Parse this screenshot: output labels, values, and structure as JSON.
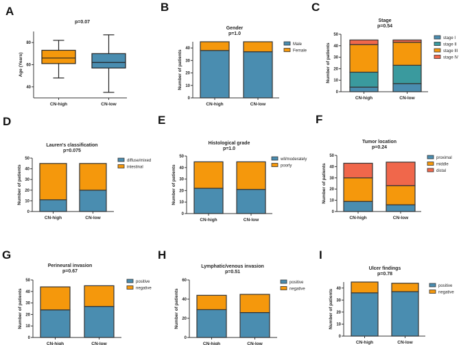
{
  "colors": {
    "blue": "#4a8db0",
    "teal": "#3a9a9e",
    "orange": "#f5980c",
    "red": "#f0674b",
    "outline": "#333333"
  },
  "chart_data": [
    {
      "id": "A",
      "label": "A",
      "type": "box",
      "title": "",
      "ptext": "p=0.07",
      "ylabel": "Age (Years)",
      "yticks": [
        40,
        60,
        80
      ],
      "ylim": [
        30,
        90
      ],
      "categories": [
        "CN-high",
        "CN-low"
      ],
      "boxes": [
        {
          "name": "CN-high",
          "color": "#f5980c",
          "min": 48,
          "q1": 61,
          "median": 66,
          "q3": 73,
          "max": 82
        },
        {
          "name": "CN-low",
          "color": "#4a8db0",
          "min": 35,
          "q1": 57,
          "median": 62,
          "q3": 70,
          "max": 87
        }
      ]
    },
    {
      "id": "B",
      "label": "B",
      "type": "bar",
      "title": "Gender",
      "ptext": "p=1.0",
      "ylabel": "Number of patients",
      "yticks": [
        0,
        10,
        20,
        30,
        40
      ],
      "ylim": [
        0,
        45
      ],
      "categories": [
        "CN-high",
        "CN-low"
      ],
      "series": [
        {
          "name": "Male",
          "color": "#4a8db0",
          "values": [
            38,
            37
          ]
        },
        {
          "name": "Female",
          "color": "#f5980c",
          "values": [
            7,
            8
          ]
        }
      ]
    },
    {
      "id": "C",
      "label": "C",
      "type": "bar",
      "title": "Stage",
      "ptext": "p=0.54",
      "ylabel": "Number of patients",
      "yticks": [
        0,
        10,
        20,
        30,
        40,
        50
      ],
      "ylim": [
        0,
        50
      ],
      "categories": [
        "CN-high",
        "CN-low"
      ],
      "series": [
        {
          "name": "stage I",
          "color": "#4a8db0",
          "values": [
            4,
            7
          ]
        },
        {
          "name": "stage II",
          "color": "#3a9a9e",
          "values": [
            13,
            16
          ]
        },
        {
          "name": "stage III",
          "color": "#f5980c",
          "values": [
            24,
            20
          ]
        },
        {
          "name": "stage IV",
          "color": "#f0674b",
          "values": [
            4,
            2
          ]
        }
      ]
    },
    {
      "id": "D",
      "label": "D",
      "type": "bar",
      "title": "Lauren's classification",
      "ptext": "p=0.075",
      "ylabel": "Number of patients",
      "yticks": [
        0,
        10,
        20,
        30,
        40,
        50
      ],
      "ylim": [
        0,
        50
      ],
      "categories": [
        "CN-high",
        "CN-low"
      ],
      "series": [
        {
          "name": "diffuse/mixed",
          "color": "#4a8db0",
          "values": [
            11,
            20
          ]
        },
        {
          "name": "intestinal",
          "color": "#f5980c",
          "values": [
            34,
            25
          ]
        }
      ]
    },
    {
      "id": "E",
      "label": "E",
      "type": "bar",
      "title": "Histological grade",
      "ptext": "p=1.0",
      "ylabel": "Number of patients",
      "yticks": [
        0,
        10,
        20,
        30,
        40,
        50
      ],
      "ylim": [
        0,
        50
      ],
      "categories": [
        "CN-high",
        "CN-low"
      ],
      "series": [
        {
          "name": "wll/moderately",
          "color": "#4a8db0",
          "values": [
            22,
            21
          ]
        },
        {
          "name": "poorly",
          "color": "#f5980c",
          "values": [
            23,
            24
          ]
        }
      ]
    },
    {
      "id": "F",
      "label": "F",
      "type": "bar",
      "title": "Tumor location",
      "ptext": "p=0.24",
      "ylabel": "Number of patients",
      "yticks": [
        0,
        10,
        20,
        30,
        40,
        50
      ],
      "ylim": [
        0,
        50
      ],
      "categories": [
        "CN-high",
        "CN-low"
      ],
      "series": [
        {
          "name": "proximal",
          "color": "#4a8db0",
          "values": [
            9,
            6
          ]
        },
        {
          "name": "middle",
          "color": "#f5980c",
          "values": [
            21,
            17
          ]
        },
        {
          "name": "distal",
          "color": "#f0674b",
          "values": [
            13,
            21
          ]
        }
      ]
    },
    {
      "id": "G",
      "label": "G",
      "type": "bar",
      "title": "Perineural invasion",
      "ptext": "p=0.67",
      "ylabel": "Number of patients",
      "yticks": [
        0,
        10,
        20,
        30,
        40,
        50
      ],
      "ylim": [
        0,
        50
      ],
      "categories": [
        "CN-high",
        "CN-low"
      ],
      "series": [
        {
          "name": "positive",
          "color": "#4a8db0",
          "values": [
            24,
            27
          ]
        },
        {
          "name": "negative",
          "color": "#f5980c",
          "values": [
            20,
            18
          ]
        }
      ]
    },
    {
      "id": "H",
      "label": "H",
      "type": "bar",
      "title": "Lymphatic/venous invasion",
      "ptext": "p=0.51",
      "ylabel": "Number of patients",
      "yticks": [
        0,
        20,
        40,
        60
      ],
      "ylim": [
        0,
        60
      ],
      "categories": [
        "CN-high",
        "CN-low"
      ],
      "series": [
        {
          "name": "positive",
          "color": "#4a8db0",
          "values": [
            29,
            26
          ]
        },
        {
          "name": "negative",
          "color": "#f5980c",
          "values": [
            15,
            19
          ]
        }
      ]
    },
    {
      "id": "I",
      "label": "I",
      "type": "bar",
      "title": "Ulcer findings",
      "ptext": "p=0.78",
      "ylabel": "Number of patients",
      "yticks": [
        0,
        10,
        20,
        30,
        40
      ],
      "ylim": [
        0,
        45
      ],
      "categories": [
        "CN-high",
        "CN-low"
      ],
      "series": [
        {
          "name": "positive",
          "color": "#4a8db0",
          "values": [
            36,
            37
          ]
        },
        {
          "name": "negative",
          "color": "#f5980c",
          "values": [
            9,
            7
          ]
        }
      ]
    }
  ]
}
